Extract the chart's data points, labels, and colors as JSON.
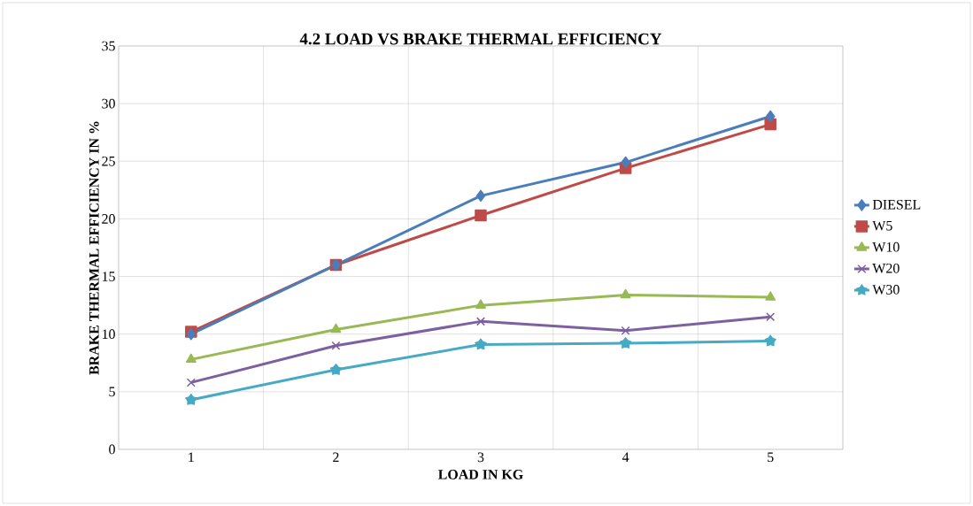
{
  "chart_data": {
    "type": "line",
    "title": "4.2 LOAD VS BRAKE  THERMAL  EFFICIENCY",
    "xlabel": "LOAD IN KG",
    "ylabel": "BRAKE THERMAL EFFICIENCY IN %",
    "categories": [
      "1",
      "2",
      "3",
      "4",
      "5"
    ],
    "series": [
      {
        "name": "DIESEL",
        "color": "#4a7ebb",
        "marker": "diamond",
        "values": [
          10.0,
          16.0,
          22.0,
          24.9,
          28.9
        ]
      },
      {
        "name": "W5",
        "color": "#be4b48",
        "marker": "square",
        "values": [
          10.2,
          16.0,
          20.3,
          24.4,
          28.2
        ]
      },
      {
        "name": "W10",
        "color": "#98b954",
        "marker": "triangle",
        "values": [
          7.8,
          10.4,
          12.5,
          13.4,
          13.2
        ]
      },
      {
        "name": "W20",
        "color": "#7d60a0",
        "marker": "cross",
        "values": [
          5.8,
          9.0,
          11.1,
          10.3,
          11.5
        ]
      },
      {
        "name": "W30",
        "color": "#46aac5",
        "marker": "star",
        "values": [
          4.3,
          6.9,
          9.1,
          9.2,
          9.4
        ]
      }
    ],
    "ylim": [
      0,
      35
    ],
    "yticks": [
      0,
      5,
      10,
      15,
      20,
      25,
      30,
      35
    ],
    "grid": true,
    "legend": "right",
    "line_style": "solid"
  }
}
